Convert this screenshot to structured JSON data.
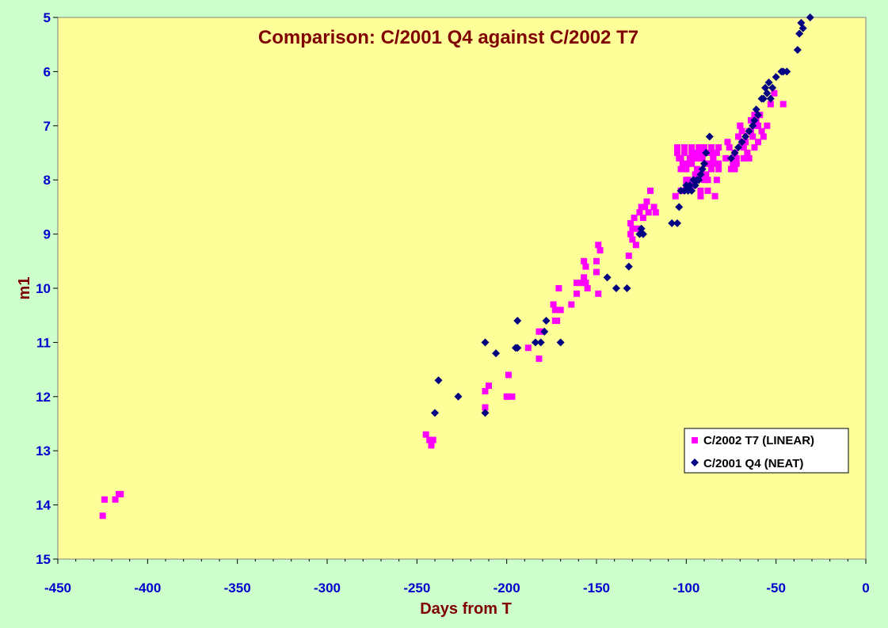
{
  "chart_data": {
    "type": "scatter",
    "title": "Comparison: C/2001 Q4 against C/2002 T7",
    "xlabel": "Days from T",
    "ylabel": "m1",
    "xlim": [
      -450,
      0
    ],
    "ylim": [
      5,
      15
    ],
    "y_inverted": true,
    "x_ticks": [
      -450,
      -400,
      -350,
      -300,
      -250,
      -200,
      -150,
      -100,
      -50,
      0
    ],
    "y_ticks": [
      5,
      6,
      7,
      8,
      9,
      10,
      11,
      12,
      13,
      14,
      15
    ],
    "grid": false,
    "legend_position": "bottom-right",
    "plot_background": "#ffff99",
    "page_background": "#ccffcc",
    "series": [
      {
        "name": "C/2002 T7 (LINEAR)",
        "marker": "square",
        "color": "#ff00ff",
        "x": [
          -425,
          -424,
          -418,
          -416,
          -415,
          -245,
          -243,
          -242,
          -241,
          -212,
          -212,
          -210,
          -200,
          -199,
          -199,
          -197,
          -188,
          -182,
          -182,
          -181,
          -174,
          -173,
          -173,
          -172,
          -171,
          -170,
          -164,
          -161,
          -161,
          -158,
          -157,
          -157,
          -156,
          -156,
          -155,
          -150,
          -150,
          -149,
          -149,
          -148,
          -132,
          -131,
          -131,
          -130,
          -130,
          -129,
          -128,
          -127,
          -126,
          -125,
          -124,
          -123,
          -122,
          -121,
          -120,
          -118,
          -117,
          -106,
          -105,
          -104,
          -103,
          -102,
          -101,
          -100,
          -99,
          -98,
          -97,
          -96,
          -95,
          -94,
          -93,
          -92,
          -91,
          -90,
          -89,
          -88,
          -87,
          -86,
          -85,
          -84,
          -83,
          -82,
          -105,
          -103,
          -101,
          -99,
          -97,
          -95,
          -93,
          -91,
          -89,
          -87,
          -85,
          -83,
          -103,
          -100,
          -97,
          -94,
          -91,
          -88,
          -85,
          -82,
          -100,
          -96,
          -92,
          -88,
          -84,
          -98,
          -94,
          -90,
          -86,
          -82,
          -78,
          -76,
          -75,
          -74,
          -73,
          -72,
          -71,
          -70,
          -69,
          -68,
          -67,
          -66,
          -65,
          -64,
          -63,
          -62,
          -61,
          -60,
          -59,
          -58,
          -57,
          -72,
          -70,
          -68,
          -66,
          -64,
          -62,
          -60,
          -77,
          -73,
          -69,
          -65,
          -61,
          -55,
          -53,
          -51,
          -46
        ],
        "y": [
          14.2,
          13.9,
          13.9,
          13.8,
          13.8,
          12.7,
          12.8,
          12.9,
          12.8,
          12.2,
          11.9,
          11.8,
          12.0,
          11.6,
          12.0,
          12.0,
          11.1,
          11.3,
          10.8,
          10.8,
          10.3,
          10.6,
          10.4,
          10.6,
          10.0,
          10.4,
          10.3,
          9.9,
          10.1,
          9.9,
          9.8,
          9.5,
          9.6,
          9.9,
          10.0,
          9.5,
          9.7,
          9.2,
          10.1,
          9.3,
          9.4,
          9.0,
          8.8,
          9.1,
          8.9,
          8.7,
          9.2,
          8.9,
          8.6,
          8.5,
          8.7,
          8.5,
          8.4,
          8.6,
          8.2,
          8.5,
          8.6,
          8.3,
          7.4,
          7.6,
          8.2,
          7.7,
          7.4,
          7.8,
          8.0,
          7.6,
          7.4,
          8.1,
          7.5,
          7.8,
          7.4,
          8.2,
          7.6,
          7.4,
          7.7,
          8.0,
          7.5,
          7.4,
          7.6,
          8.3,
          7.5,
          7.8,
          7.5,
          7.8,
          7.5,
          7.7,
          7.5,
          7.9,
          7.6,
          7.5,
          7.9,
          7.7,
          7.5,
          8.0,
          7.6,
          8.0,
          7.7,
          7.6,
          7.9,
          7.5,
          7.6,
          7.7,
          8.1,
          7.6,
          8.3,
          8.2,
          7.7,
          7.7,
          7.5,
          8.0,
          7.8,
          7.4,
          7.6,
          7.4,
          7.8,
          7.7,
          7.5,
          7.7,
          7.2,
          7.0,
          7.3,
          7.6,
          7.3,
          7.5,
          7.1,
          6.9,
          7.2,
          7.4,
          6.9,
          7.0,
          6.8,
          7.1,
          7.2,
          7.6,
          7.0,
          7.4,
          7.5,
          7.1,
          6.8,
          7.3,
          7.3,
          7.8,
          7.1,
          7.6,
          7.0,
          7.0,
          6.6,
          6.4,
          6.6
        ]
      },
      {
        "name": "C/2001 Q4 (NEAT)",
        "marker": "diamond",
        "color": "#000080",
        "x": [
          -240,
          -238,
          -227,
          -212,
          -212,
          -206,
          -195,
          -194,
          -194,
          -184,
          -181,
          -179,
          -178,
          -170,
          -144,
          -139,
          -133,
          -132,
          -126,
          -125,
          -124,
          -108,
          -105,
          -104,
          -103,
          -101,
          -100,
          -99,
          -98,
          -97,
          -96,
          -95,
          -94,
          -93,
          -92,
          -91,
          -90,
          -89,
          -87,
          -75,
          -73,
          -71,
          -69,
          -67,
          -65,
          -63,
          -62,
          -61,
          -60,
          -58,
          -57,
          -56,
          -55,
          -54,
          -53,
          -52,
          -50,
          -47,
          -46,
          -44,
          -38,
          -37,
          -36,
          -35,
          -31
        ],
        "y": [
          12.3,
          11.7,
          12.0,
          11.0,
          12.3,
          11.2,
          11.1,
          10.6,
          11.1,
          11.0,
          11.0,
          10.8,
          10.6,
          11.0,
          9.8,
          10.0,
          10.0,
          9.6,
          9.0,
          8.9,
          9.0,
          8.8,
          8.8,
          8.5,
          8.2,
          8.2,
          8.1,
          8.2,
          8.1,
          8.2,
          8.0,
          8.1,
          8.0,
          8.0,
          7.9,
          7.8,
          7.7,
          7.5,
          7.2,
          7.6,
          7.5,
          7.4,
          7.3,
          7.2,
          7.1,
          7.0,
          6.9,
          6.7,
          6.8,
          6.5,
          6.5,
          6.3,
          6.4,
          6.2,
          6.5,
          6.3,
          6.1,
          6.0,
          6.0,
          6.0,
          5.6,
          5.3,
          5.1,
          5.2,
          5.0
        ]
      }
    ]
  }
}
